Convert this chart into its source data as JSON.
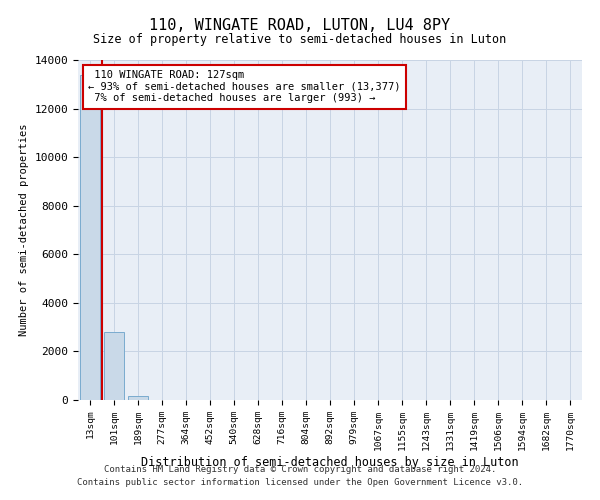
{
  "title": "110, WINGATE ROAD, LUTON, LU4 8PY",
  "subtitle": "Size of property relative to semi-detached houses in Luton",
  "xlabel": "Distribution of semi-detached houses by size in Luton",
  "ylabel": "Number of semi-detached properties",
  "property_label": "110 WINGATE ROAD: 127sqm",
  "pct_smaller": 93,
  "count_smaller": 13377,
  "pct_larger": 7,
  "count_larger": 993,
  "bar_color": "#c9d9e8",
  "bar_edge_color": "#7aabcf",
  "vline_color": "#cc0000",
  "annotation_box_edge": "#cc0000",
  "annotation_box_face": "#ffffff",
  "grid_color": "#c8d4e4",
  "background_color": "#e8eef6",
  "categories": [
    "13sqm",
    "101sqm",
    "189sqm",
    "277sqm",
    "364sqm",
    "452sqm",
    "540sqm",
    "628sqm",
    "716sqm",
    "804sqm",
    "892sqm",
    "979sqm",
    "1067sqm",
    "1155sqm",
    "1243sqm",
    "1331sqm",
    "1419sqm",
    "1506sqm",
    "1594sqm",
    "1682sqm",
    "1770sqm"
  ],
  "values": [
    13377,
    2800,
    160,
    8,
    2,
    1,
    0,
    0,
    0,
    0,
    0,
    0,
    0,
    0,
    0,
    0,
    0,
    0,
    0,
    0,
    0
  ],
  "ylim": [
    0,
    14000
  ],
  "yticks": [
    0,
    2000,
    4000,
    6000,
    8000,
    10000,
    12000,
    14000
  ],
  "vline_x": 0.5,
  "footnote1": "Contains HM Land Registry data © Crown copyright and database right 2024.",
  "footnote2": "Contains public sector information licensed under the Open Government Licence v3.0."
}
